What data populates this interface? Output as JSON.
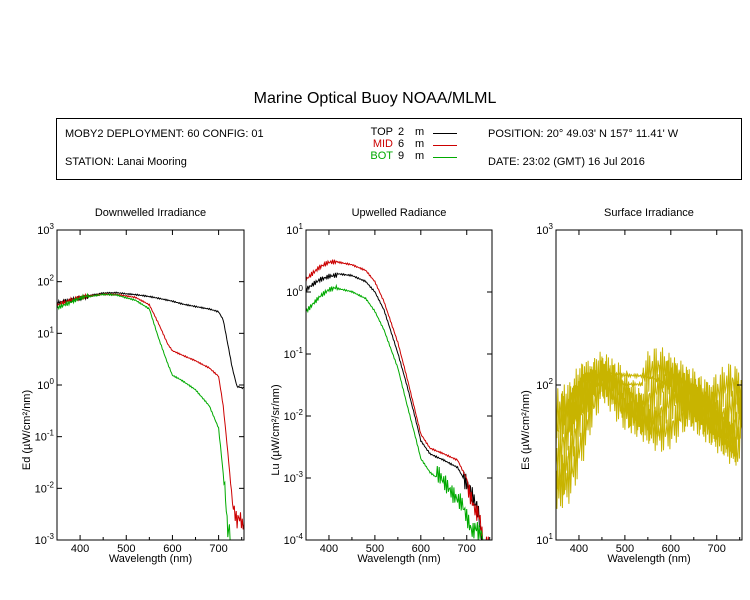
{
  "title": "Marine Optical Buoy NOAA/MLML",
  "info": {
    "deployment": "MOBY2 DEPLOYMENT: 60 CONFIG: 01",
    "station": "STATION: Lanai Mooring",
    "position": "POSITION: 20° 49.03' N   157° 11.41' W",
    "date": "DATE: 23:02 (GMT) 16 Jul 2016",
    "legend": [
      {
        "name": "TOP",
        "depth": "2",
        "unit": "m",
        "color": "#000000"
      },
      {
        "name": "MID",
        "depth": "6",
        "unit": "m",
        "color": "#cc0000"
      },
      {
        "name": "BOT",
        "depth": "9",
        "unit": "m",
        "color": "#00aa00"
      }
    ]
  },
  "chart_data": [
    {
      "type": "line",
      "title": "Downwelled Irradiance",
      "xlabel": "Wavelength (nm)",
      "ylabel": "Ed  (µW/cm²/nm)",
      "xlim": [
        350,
        755
      ],
      "ylim": [
        0.001,
        1000
      ],
      "yscale": "log",
      "xticks": [
        400,
        500,
        600,
        700
      ],
      "yticks": [
        {
          "base": "10",
          "exp": "3"
        },
        {
          "base": "10",
          "exp": "2"
        },
        {
          "base": "10",
          "exp": "1"
        },
        {
          "base": "10",
          "exp": "0"
        },
        {
          "base": "10",
          "exp": "-1"
        },
        {
          "base": "10",
          "exp": "-2"
        },
        {
          "base": "10",
          "exp": "-3"
        }
      ],
      "series": [
        {
          "name": "TOP",
          "color": "#000000",
          "x": [
            350,
            380,
            400,
            420,
            450,
            480,
            500,
            520,
            550,
            580,
            600,
            620,
            650,
            680,
            700,
            710,
            720,
            730,
            740,
            755
          ],
          "y": [
            35,
            42,
            48,
            55,
            62,
            62,
            58,
            55,
            50,
            45,
            42,
            38,
            34,
            30,
            26,
            18,
            6,
            2,
            0.9,
            0.9
          ]
        },
        {
          "name": "MID",
          "color": "#cc0000",
          "x": [
            350,
            380,
            400,
            420,
            450,
            480,
            500,
            520,
            550,
            570,
            590,
            600,
            620,
            650,
            680,
            700,
            710,
            720,
            730,
            740,
            755
          ],
          "y": [
            33,
            40,
            46,
            52,
            58,
            58,
            54,
            50,
            35,
            15,
            6,
            4.5,
            3.8,
            3.0,
            2.2,
            1.5,
            0.4,
            0.05,
            0.005,
            0.002,
            0.002
          ]
        },
        {
          "name": "BOT",
          "color": "#00aa00",
          "x": [
            350,
            380,
            400,
            420,
            450,
            480,
            500,
            520,
            550,
            570,
            590,
            600,
            620,
            650,
            680,
            700,
            710,
            715,
            720,
            725
          ],
          "y": [
            32,
            38,
            44,
            50,
            56,
            56,
            50,
            45,
            30,
            8,
            2.5,
            1.5,
            1.2,
            0.8,
            0.4,
            0.15,
            0.02,
            0.005,
            0.002,
            0.001
          ]
        }
      ]
    },
    {
      "type": "line",
      "title": "Upwelled Radiance",
      "xlabel": "Wavelength (nm)",
      "ylabel": "Lu  (µW/cm²/sr/nm)",
      "xlim": [
        350,
        755
      ],
      "ylim": [
        0.0001,
        10
      ],
      "yscale": "log",
      "xticks": [
        400,
        500,
        600,
        700
      ],
      "yticks": [
        {
          "base": "10",
          "exp": "1"
        },
        {
          "base": "10",
          "exp": "0"
        },
        {
          "base": "10",
          "exp": "-1"
        },
        {
          "base": "10",
          "exp": "-2"
        },
        {
          "base": "10",
          "exp": "-3"
        },
        {
          "base": "10",
          "exp": "-4"
        }
      ],
      "series": [
        {
          "name": "TOP",
          "color": "#000000",
          "x": [
            350,
            380,
            400,
            420,
            450,
            480,
            500,
            520,
            550,
            570,
            590,
            600,
            620,
            650,
            680,
            700,
            720,
            735,
            745,
            755
          ],
          "y": [
            1.0,
            1.5,
            1.8,
            2.0,
            1.9,
            1.5,
            1.0,
            0.5,
            0.1,
            0.03,
            0.008,
            0.004,
            0.0025,
            0.002,
            0.0015,
            0.0008,
            0.0003,
            0.0001,
            0.0001,
            0.0001
          ]
        },
        {
          "name": "MID",
          "color": "#cc0000",
          "x": [
            350,
            380,
            400,
            420,
            450,
            480,
            500,
            520,
            550,
            570,
            590,
            600,
            620,
            650,
            680,
            700,
            720,
            735,
            745,
            755
          ],
          "y": [
            1.5,
            2.3,
            2.8,
            3.0,
            2.8,
            2.3,
            1.5,
            0.7,
            0.15,
            0.04,
            0.01,
            0.005,
            0.003,
            0.0025,
            0.002,
            0.001,
            0.0003,
            0.0001,
            0.0001,
            0.0001
          ]
        },
        {
          "name": "BOT",
          "color": "#00aa00",
          "x": [
            350,
            380,
            400,
            420,
            450,
            480,
            500,
            520,
            550,
            570,
            590,
            600,
            620,
            650,
            670,
            690,
            710,
            725,
            735
          ],
          "y": [
            0.5,
            0.8,
            1.0,
            1.1,
            1.0,
            0.8,
            0.5,
            0.25,
            0.06,
            0.015,
            0.004,
            0.002,
            0.0012,
            0.0008,
            0.0006,
            0.0005,
            0.0002,
            0.0001,
            0.0001
          ]
        }
      ]
    },
    {
      "type": "line",
      "title": "Surface Irradiance",
      "xlabel": "Wavelength (nm)",
      "ylabel": "Es  (µW/cm²/nm)",
      "xlim": [
        350,
        755
      ],
      "ylim": [
        10,
        1000
      ],
      "yscale": "log",
      "xticks": [
        400,
        500,
        600,
        700
      ],
      "yticks": [
        {
          "base": "10",
          "exp": "3"
        },
        {
          "base": "10",
          "exp": "2"
        },
        {
          "base": "10",
          "exp": "1"
        }
      ],
      "series": [
        {
          "name": "Es",
          "color": "#c8b400",
          "x": [
            350,
            380,
            400,
            420,
            450,
            480,
            500,
            550,
            600,
            650,
            700,
            740,
            755
          ],
          "y": [
            45,
            55,
            75,
            95,
            125,
            120,
            115,
            110,
            100,
            95,
            85,
            75,
            80
          ]
        },
        {
          "name": "Es",
          "color": "#c8b400",
          "x": [
            350,
            380,
            400,
            420,
            450,
            480,
            500,
            550,
            600,
            650,
            700,
            740,
            755
          ],
          "y": [
            40,
            50,
            68,
            85,
            112,
            108,
            104,
            99,
            90,
            85,
            76,
            68,
            72
          ]
        },
        {
          "name": "Es",
          "color": "#c8b400",
          "x": [
            350,
            380,
            400,
            420,
            450,
            480,
            500,
            550,
            600,
            650,
            700,
            740,
            755
          ],
          "y": [
            36,
            45,
            62,
            77,
            100,
            97,
            93,
            89,
            81,
            76,
            68,
            61,
            65
          ]
        },
        {
          "name": "Es",
          "color": "#c8b400",
          "x": [
            350,
            380,
            400,
            420,
            450,
            480,
            500,
            550,
            600,
            650,
            700,
            740,
            755
          ],
          "y": [
            33,
            41,
            56,
            70,
            90,
            87,
            84,
            80,
            73,
            69,
            61,
            55,
            58
          ]
        },
        {
          "name": "Es",
          "color": "#c8b400",
          "x": [
            350,
            380,
            400,
            420,
            450,
            480,
            500,
            550,
            600,
            650,
            700,
            740,
            755
          ],
          "y": [
            30,
            37,
            50,
            63,
            81,
            78,
            75,
            72,
            66,
            62,
            55,
            50,
            52
          ]
        }
      ]
    }
  ]
}
